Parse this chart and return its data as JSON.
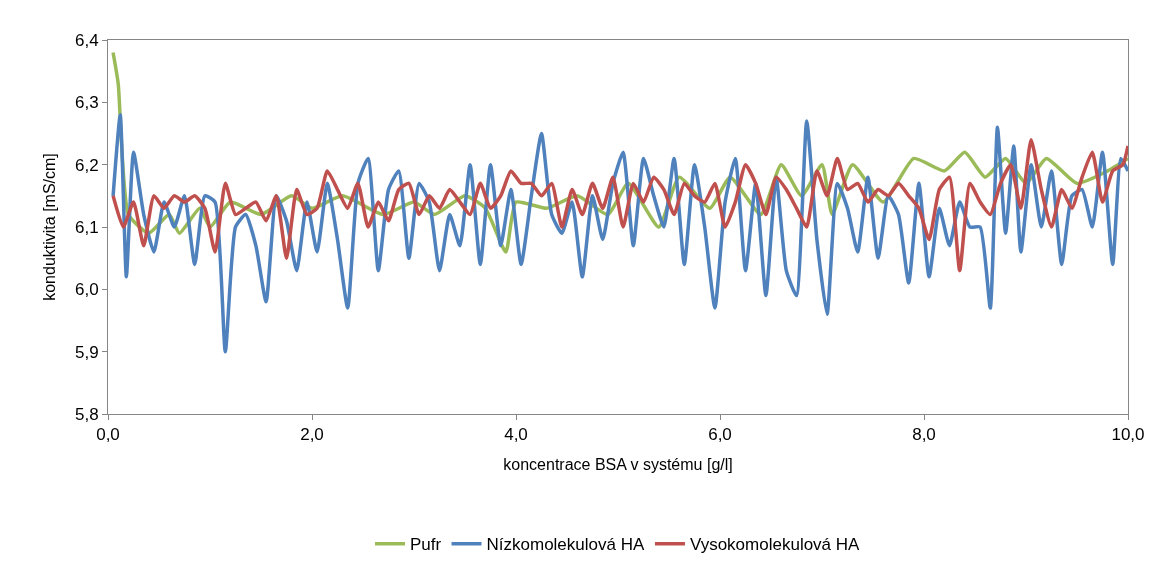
{
  "chart_data": {
    "type": "line",
    "xlabel": "koncentrace BSA v systému [g/l]",
    "ylabel": "konduktivita [mS/cm]",
    "xlim": [
      0,
      10
    ],
    "ylim": [
      5.8,
      6.4
    ],
    "xticks": [
      {
        "value": 0,
        "label": "0,0"
      },
      {
        "value": 2,
        "label": "2,0"
      },
      {
        "value": 4,
        "label": "4,0"
      },
      {
        "value": 6,
        "label": "6,0"
      },
      {
        "value": 8,
        "label": "8,0"
      },
      {
        "value": 10,
        "label": "10,0"
      }
    ],
    "yticks": [
      {
        "value": 5.8,
        "label": "5,8"
      },
      {
        "value": 5.9,
        "label": "5,9"
      },
      {
        "value": 6.0,
        "label": "6,0"
      },
      {
        "value": 6.1,
        "label": "6,1"
      },
      {
        "value": 6.2,
        "label": "6,2"
      },
      {
        "value": 6.3,
        "label": "6,3"
      },
      {
        "value": 6.4,
        "label": "6,4"
      }
    ],
    "legend": "bottom",
    "marker": "none",
    "line_style": "solid",
    "series": [
      {
        "name": "Pufr",
        "color": "#9bbb59",
        "x": [
          0.05,
          0.1,
          0.2,
          0.4,
          0.6,
          0.7,
          0.9,
          1.0,
          1.2,
          1.5,
          1.8,
          2.0,
          2.3,
          2.7,
          3.0,
          3.2,
          3.5,
          3.7,
          3.9,
          4.0,
          4.3,
          4.6,
          4.9,
          5.1,
          5.4,
          5.6,
          5.9,
          6.1,
          6.4,
          6.6,
          6.8,
          7.0,
          7.1,
          7.3,
          7.6,
          7.9,
          8.2,
          8.4,
          8.6,
          8.8,
          9.0,
          9.2,
          9.5,
          9.8,
          10.0
        ],
        "values": [
          6.38,
          6.33,
          6.12,
          6.09,
          6.12,
          6.09,
          6.13,
          6.1,
          6.14,
          6.12,
          6.15,
          6.13,
          6.15,
          6.12,
          6.14,
          6.12,
          6.15,
          6.13,
          6.06,
          6.14,
          6.13,
          6.15,
          6.12,
          6.17,
          6.1,
          6.18,
          6.13,
          6.18,
          6.12,
          6.2,
          6.15,
          6.2,
          6.12,
          6.2,
          6.14,
          6.21,
          6.19,
          6.22,
          6.18,
          6.21,
          6.17,
          6.21,
          6.17,
          6.19,
          6.21
        ]
      },
      {
        "name": "Nízkomolekulová HA",
        "color": "#4f81bd",
        "x": [
          0.05,
          0.12,
          0.18,
          0.25,
          0.35,
          0.45,
          0.55,
          0.65,
          0.75,
          0.85,
          0.95,
          1.05,
          1.15,
          1.25,
          1.35,
          1.45,
          1.55,
          1.65,
          1.75,
          1.85,
          1.95,
          2.05,
          2.15,
          2.25,
          2.35,
          2.45,
          2.55,
          2.65,
          2.75,
          2.85,
          2.95,
          3.05,
          3.15,
          3.25,
          3.35,
          3.45,
          3.55,
          3.65,
          3.75,
          3.85,
          3.95,
          4.05,
          4.15,
          4.25,
          4.35,
          4.45,
          4.55,
          4.65,
          4.75,
          4.85,
          4.95,
          5.05,
          5.15,
          5.25,
          5.35,
          5.45,
          5.55,
          5.65,
          5.75,
          5.85,
          5.95,
          6.05,
          6.15,
          6.25,
          6.35,
          6.45,
          6.55,
          6.65,
          6.75,
          6.85,
          6.95,
          7.05,
          7.15,
          7.25,
          7.35,
          7.45,
          7.55,
          7.65,
          7.75,
          7.85,
          7.95,
          8.05,
          8.15,
          8.25,
          8.35,
          8.45,
          8.55,
          8.65,
          8.72,
          8.8,
          8.88,
          8.95,
          9.05,
          9.15,
          9.25,
          9.35,
          9.45,
          9.55,
          9.65,
          9.75,
          9.85,
          9.93,
          10.0
        ],
        "values": [
          6.15,
          6.28,
          6.02,
          6.22,
          6.12,
          6.06,
          6.14,
          6.1,
          6.15,
          6.04,
          6.15,
          6.14,
          5.9,
          6.1,
          6.12,
          6.07,
          5.98,
          6.15,
          6.11,
          6.03,
          6.14,
          6.06,
          6.17,
          6.08,
          5.97,
          6.17,
          6.21,
          6.03,
          6.16,
          6.19,
          6.05,
          6.17,
          6.14,
          6.03,
          6.12,
          6.07,
          6.2,
          6.04,
          6.2,
          6.07,
          6.16,
          6.04,
          6.15,
          6.25,
          6.12,
          6.09,
          6.14,
          6.02,
          6.15,
          6.08,
          6.17,
          6.22,
          6.07,
          6.21,
          6.15,
          6.1,
          6.21,
          6.04,
          6.2,
          6.1,
          5.97,
          6.14,
          6.21,
          6.03,
          6.17,
          5.99,
          6.18,
          6.03,
          5.99,
          6.27,
          6.08,
          5.96,
          6.17,
          6.13,
          6.06,
          6.18,
          6.05,
          6.15,
          6.12,
          6.01,
          6.17,
          6.02,
          6.13,
          6.07,
          6.14,
          6.1,
          6.1,
          5.97,
          6.26,
          6.09,
          6.23,
          6.06,
          6.2,
          6.1,
          6.19,
          6.04,
          6.15,
          6.16,
          6.1,
          6.22,
          6.04,
          6.21,
          6.19
        ]
      },
      {
        "name": "Vysokomolekulová HA",
        "color": "#c0504d",
        "x": [
          0.05,
          0.15,
          0.25,
          0.35,
          0.45,
          0.55,
          0.65,
          0.75,
          0.85,
          0.95,
          1.05,
          1.15,
          1.25,
          1.35,
          1.45,
          1.55,
          1.65,
          1.75,
          1.85,
          1.95,
          2.05,
          2.15,
          2.25,
          2.35,
          2.45,
          2.55,
          2.65,
          2.75,
          2.85,
          2.95,
          3.05,
          3.15,
          3.25,
          3.35,
          3.45,
          3.55,
          3.65,
          3.75,
          3.85,
          3.95,
          4.05,
          4.15,
          4.25,
          4.35,
          4.45,
          4.55,
          4.65,
          4.75,
          4.85,
          4.95,
          5.05,
          5.15,
          5.25,
          5.35,
          5.45,
          5.55,
          5.65,
          5.75,
          5.85,
          5.95,
          6.05,
          6.15,
          6.25,
          6.35,
          6.45,
          6.55,
          6.65,
          6.75,
          6.85,
          6.95,
          7.05,
          7.15,
          7.25,
          7.35,
          7.45,
          7.55,
          7.65,
          7.75,
          7.85,
          7.95,
          8.05,
          8.15,
          8.25,
          8.35,
          8.45,
          8.55,
          8.65,
          8.75,
          8.85,
          8.95,
          9.05,
          9.15,
          9.25,
          9.35,
          9.45,
          9.55,
          9.65,
          9.75,
          9.85,
          9.95,
          10.0
        ],
        "values": [
          6.15,
          6.1,
          6.14,
          6.07,
          6.15,
          6.13,
          6.15,
          6.14,
          6.15,
          6.13,
          6.06,
          6.17,
          6.12,
          6.13,
          6.14,
          6.11,
          6.15,
          6.05,
          6.16,
          6.12,
          6.13,
          6.19,
          6.16,
          6.13,
          6.17,
          6.1,
          6.14,
          6.11,
          6.16,
          6.17,
          6.12,
          6.15,
          6.13,
          6.16,
          6.14,
          6.12,
          6.17,
          6.13,
          6.15,
          6.19,
          6.17,
          6.17,
          6.15,
          6.17,
          6.1,
          6.16,
          6.12,
          6.17,
          6.13,
          6.18,
          6.1,
          6.17,
          6.14,
          6.18,
          6.16,
          6.12,
          6.17,
          6.15,
          6.14,
          6.17,
          6.1,
          6.14,
          6.2,
          6.17,
          6.12,
          6.18,
          6.16,
          6.13,
          6.1,
          6.19,
          6.15,
          6.21,
          6.16,
          6.17,
          6.14,
          6.16,
          6.15,
          6.17,
          6.15,
          6.13,
          6.08,
          6.16,
          6.18,
          6.03,
          6.17,
          6.14,
          6.12,
          6.17,
          6.2,
          6.13,
          6.24,
          6.16,
          6.1,
          6.16,
          6.13,
          6.18,
          6.22,
          6.14,
          6.19,
          6.2,
          6.23
        ]
      }
    ]
  }
}
